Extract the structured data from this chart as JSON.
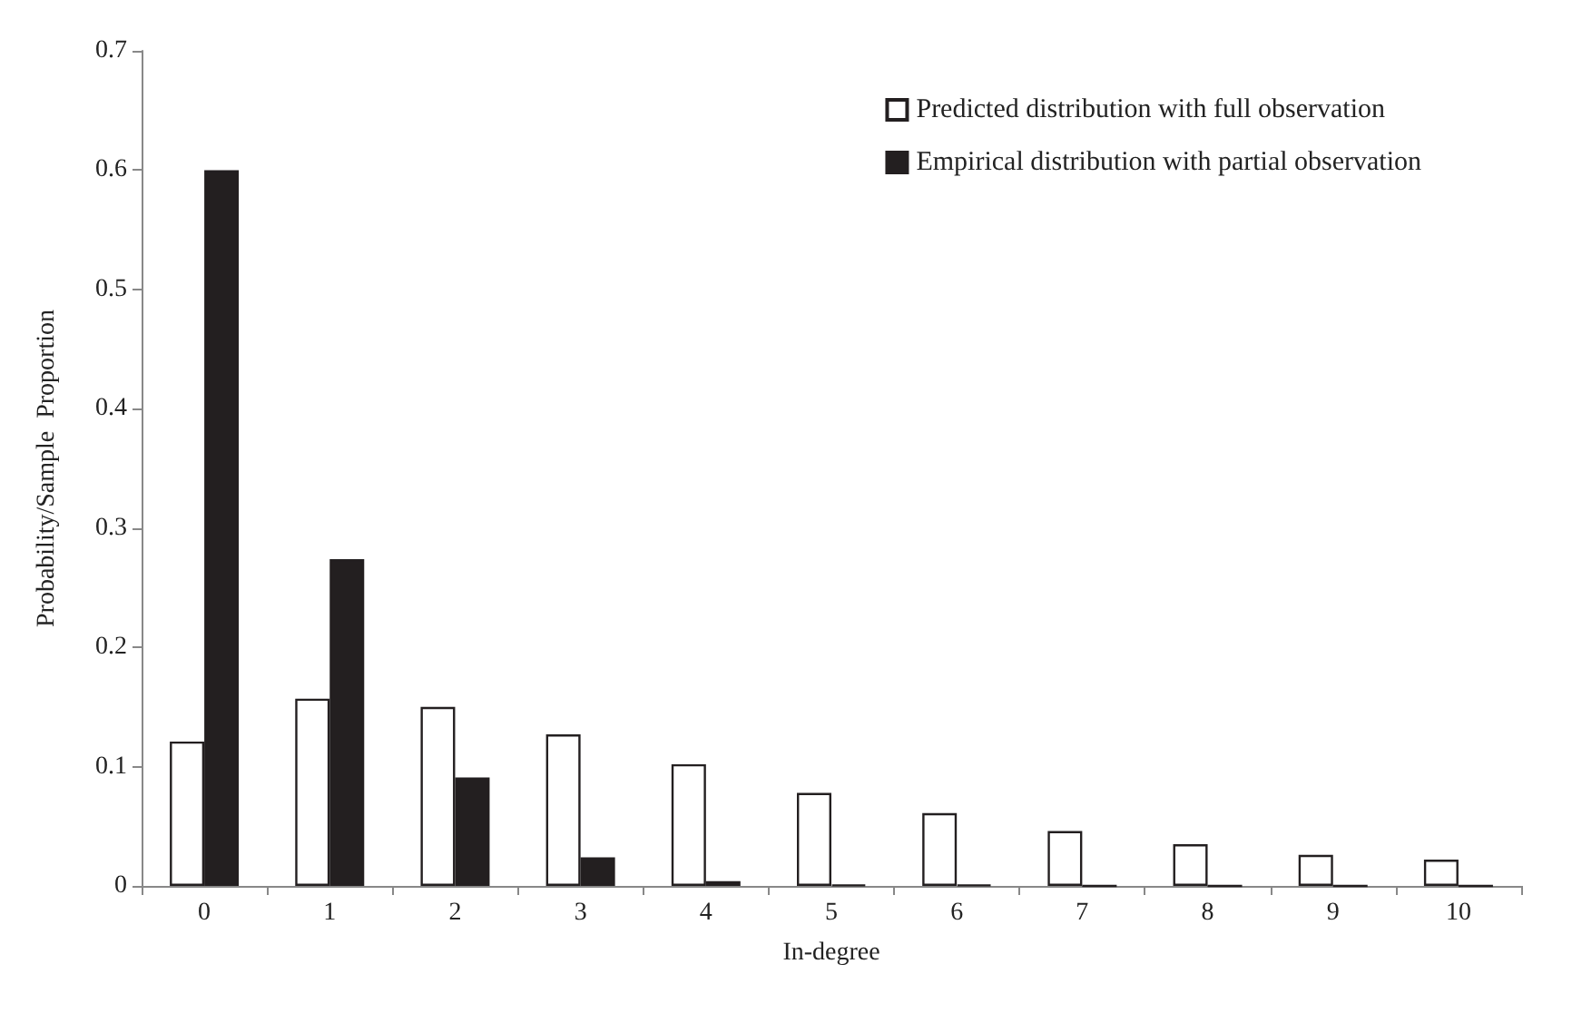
{
  "chart_data": {
    "type": "bar",
    "xlabel": "In-degree",
    "ylabel": "Probability/Sample  Proportion",
    "categories": [
      "0",
      "1",
      "2",
      "3",
      "4",
      "5",
      "6",
      "7",
      "8",
      "9",
      "10"
    ],
    "series": [
      {
        "name": "Predicted distribution with full observation",
        "color": "#ffffff",
        "values": [
          0.121,
          0.157,
          0.15,
          0.127,
          0.102,
          0.078,
          0.061,
          0.046,
          0.035,
          0.026,
          0.022
        ]
      },
      {
        "name": "Empirical distribution with partial observation",
        "color": "#231f20",
        "values": [
          0.6,
          0.274,
          0.091,
          0.024,
          0.004,
          0.001,
          0.001,
          0,
          0,
          0,
          0
        ]
      }
    ],
    "ylim": [
      0,
      0.7
    ],
    "yticks": [
      0,
      0.1,
      0.2,
      0.3,
      0.4,
      0.5,
      0.6,
      0.7
    ],
    "grid": false,
    "legend": "top right"
  }
}
